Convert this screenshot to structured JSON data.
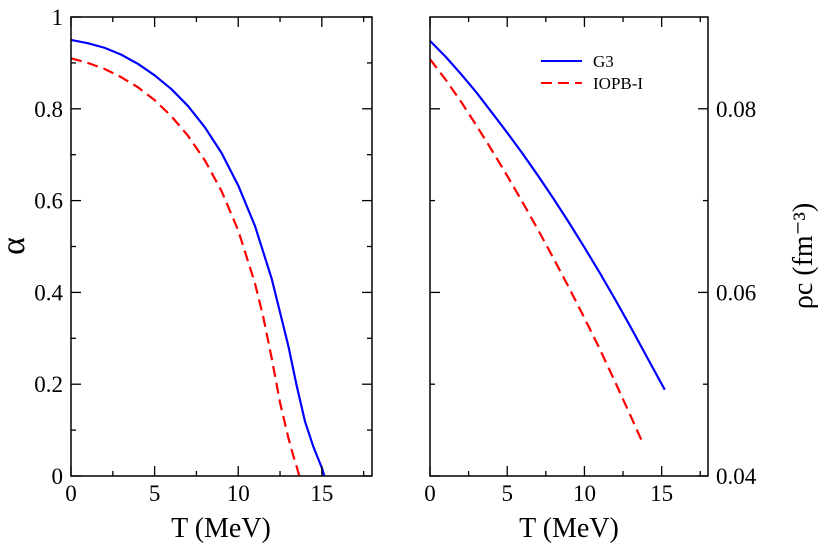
{
  "chart_data": [
    {
      "type": "line",
      "panel": "left",
      "xlabel": "T (MeV)",
      "ylabel": "α",
      "xlim": [
        0,
        18
      ],
      "ylim": [
        0,
        1
      ],
      "xticks": [
        0,
        5,
        10,
        15
      ],
      "xtick_labels": [
        "0",
        "5",
        "10",
        "15"
      ],
      "yticks": [
        0,
        0.2,
        0.4,
        0.6,
        0.8,
        1
      ],
      "ytick_labels": [
        "0",
        "0.2",
        "0.4",
        "0.6",
        "0.8",
        "1"
      ],
      "series": [
        {
          "name": "G3",
          "color": "#0000ff",
          "style": "solid",
          "x": [
            0,
            1,
            2,
            3,
            4,
            5,
            6,
            7,
            8,
            9,
            10,
            11,
            12,
            13,
            13.5,
            14,
            14.5,
            14.8,
            15.0,
            15.15
          ],
          "y": [
            0.95,
            0.943,
            0.933,
            0.918,
            0.898,
            0.873,
            0.843,
            0.806,
            0.76,
            0.704,
            0.633,
            0.545,
            0.43,
            0.283,
            0.196,
            0.118,
            0.063,
            0.036,
            0.018,
            0.0
          ]
        },
        {
          "name": "IOPB-I",
          "color": "#ff0000",
          "style": "dashed",
          "x": [
            0,
            1,
            2,
            3,
            4,
            5,
            6,
            7,
            8,
            9,
            10,
            11,
            11.5,
            12,
            12.5,
            13,
            13.3,
            13.5,
            13.65
          ],
          "y": [
            0.91,
            0.9,
            0.887,
            0.869,
            0.847,
            0.819,
            0.784,
            0.741,
            0.688,
            0.621,
            0.535,
            0.42,
            0.346,
            0.257,
            0.16,
            0.083,
            0.043,
            0.02,
            0.0
          ]
        }
      ]
    },
    {
      "type": "line",
      "panel": "right",
      "xlabel": "T (MeV)",
      "ylabel": "ρc (fm⁻³)",
      "xlim": [
        0,
        18
      ],
      "ylim": [
        0.04,
        0.09
      ],
      "xticks": [
        0,
        5,
        10,
        15
      ],
      "xtick_labels": [
        "0",
        "5",
        "10",
        "15"
      ],
      "yticks": [
        0.04,
        0.06,
        0.08
      ],
      "ytick_labels": [
        "0.04",
        "0.06",
        "0.08"
      ],
      "legend": "top-right",
      "series": [
        {
          "name": "G3",
          "color": "#0000ff",
          "style": "solid",
          "x": [
            0,
            1,
            2,
            3,
            4,
            5,
            6,
            7,
            8,
            9,
            10,
            11,
            12,
            13,
            14,
            15.2
          ],
          "y": [
            0.0874,
            0.0857,
            0.0838,
            0.0818,
            0.0796,
            0.0774,
            0.0751,
            0.0727,
            0.0702,
            0.0676,
            0.0649,
            0.0621,
            0.0592,
            0.0562,
            0.0531,
            0.0494
          ]
        },
        {
          "name": "IOPB-I",
          "color": "#ff0000",
          "style": "dashed",
          "x": [
            0,
            1,
            2,
            3,
            4,
            5,
            6,
            7,
            8,
            9,
            10,
            11,
            12,
            13,
            13.8
          ],
          "y": [
            0.0854,
            0.0832,
            0.0808,
            0.0782,
            0.0755,
            0.0727,
            0.0698,
            0.0668,
            0.0637,
            0.0605,
            0.0572,
            0.0538,
            0.0502,
            0.0465,
            0.0435
          ]
        }
      ]
    }
  ]
}
